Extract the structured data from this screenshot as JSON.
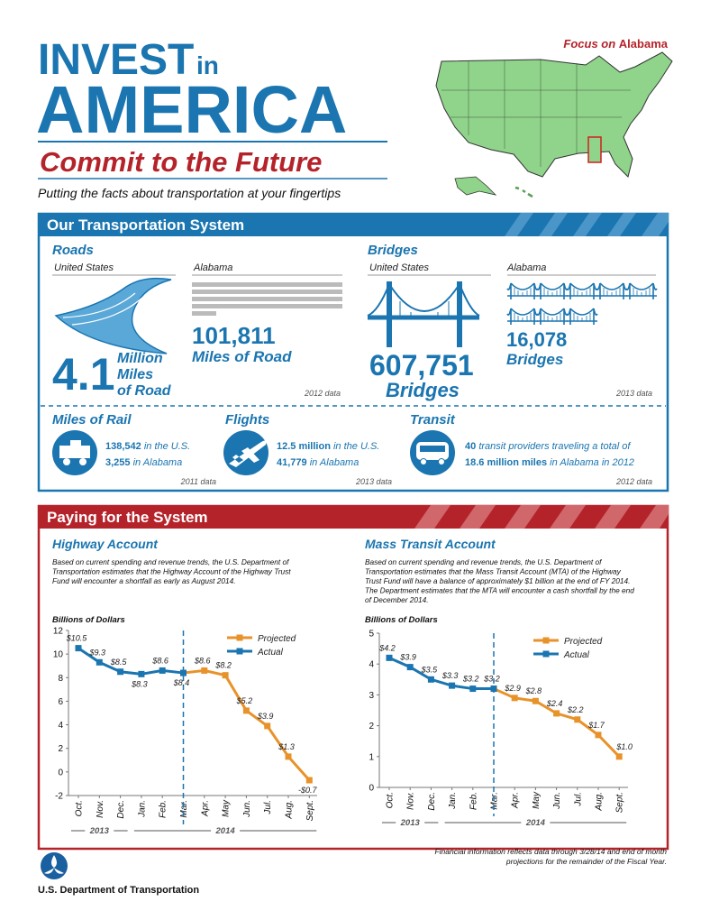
{
  "header": {
    "title_line1": "INVEST",
    "title_in": "in",
    "title_line2": "AMERICA",
    "subtitle": "Commit to the Future",
    "tagline": "Putting the facts about transportation at your fingertips"
  },
  "focus": {
    "prefix": "Focus on",
    "state": "Alabama"
  },
  "transportation_system": {
    "title": "Our Transportation System",
    "roads": {
      "title": "Roads",
      "us_label": "United States",
      "al_label": "Alabama",
      "us_value": "4.1",
      "us_unit": [
        "Million",
        "Miles",
        "of Road"
      ],
      "al_value": "101,811",
      "al_unit": "Miles of Road",
      "source": "2012 data"
    },
    "bridges": {
      "title": "Bridges",
      "us_label": "United States",
      "al_label": "Alabama",
      "us_value": "607,751",
      "us_unit": "Bridges",
      "al_value": "16,078",
      "al_unit": "Bridges",
      "source": "2013 data"
    },
    "rail": {
      "title": "Miles of Rail",
      "lines": [
        {
          "figure": "138,542",
          "text": "in the U.S."
        },
        {
          "figure": "3,255",
          "text": "in Alabama"
        }
      ],
      "source": "2011 data"
    },
    "flights": {
      "title": "Flights",
      "lines": [
        {
          "figure": "12.5 million",
          "text": "in the U.S."
        },
        {
          "figure": "41,779",
          "text": "in Alabama"
        }
      ],
      "source": "2013 data"
    },
    "transit": {
      "title": "Transit",
      "lines": [
        {
          "figure": "40",
          "text": "transit providers traveling a total of"
        },
        {
          "figure": "18.6 million miles",
          "text": "in Alabama in 2012"
        }
      ],
      "source": "2012 data"
    }
  },
  "paying_for_system": {
    "title": "Paying for the System"
  },
  "chart_data": [
    {
      "type": "line",
      "title": "Highway Account",
      "description": [
        "Based on current spending and revenue trends, the U.S. Department of",
        "Transportation estimates that the Highway Account of the Highway Trust",
        "Fund will encounter a shortfall as early as August 2014."
      ],
      "y_label": "Billions of Dollars",
      "categories": [
        "Oct.",
        "Nov.",
        "Dec.",
        "Jan.",
        "Feb.",
        "Mar.",
        "Apr.",
        "May",
        "Jun.",
        "Jul.",
        "Aug.",
        "Sept."
      ],
      "year_labels": [
        "2013",
        "2014"
      ],
      "series": [
        {
          "name": "Projected",
          "color": "#e8922a",
          "values": [
            null,
            null,
            null,
            null,
            null,
            8.4,
            8.6,
            8.2,
            5.2,
            3.9,
            1.3,
            -0.7
          ],
          "value_labels": [
            null,
            null,
            null,
            null,
            null,
            null,
            "$8.6",
            "$8.2",
            "$5.2",
            "$3.9",
            "$1.3",
            "-$0.7"
          ]
        },
        {
          "name": "Actual",
          "color": "#1a75b0",
          "values": [
            10.5,
            9.3,
            8.5,
            8.3,
            8.6,
            8.4,
            null,
            null,
            null,
            null,
            null,
            null
          ],
          "value_labels": [
            "$10.5",
            "$9.3",
            "$8.5",
            "$8.3",
            "$8.6",
            "$8.4",
            null,
            null,
            null,
            null,
            null,
            null
          ]
        }
      ],
      "ylim": [
        -2,
        12
      ],
      "yticks": [
        -2,
        0,
        2,
        4,
        6,
        8,
        10,
        12
      ]
    },
    {
      "type": "line",
      "title": "Mass Transit Account",
      "description": [
        "Based on current spending and revenue trends, the U.S. Department of",
        "Transportation estimates that the Mass Transit Account (MTA) of the Highway",
        "Trust Fund will have a balance of approximately $1 billion at the end of FY 2014.",
        "The Department estimates that the MTA will encounter a cash shortfall by the end",
        "of December 2014."
      ],
      "y_label": "Billions of Dollars",
      "categories": [
        "Oct.",
        "Nov.",
        "Dec.",
        "Jan.",
        "Feb.",
        "Mar.",
        "Apr.",
        "May",
        "Jun.",
        "Jul.",
        "Aug.",
        "Sept."
      ],
      "year_labels": [
        "2013",
        "2014"
      ],
      "series": [
        {
          "name": "Projected",
          "color": "#e8922a",
          "values": [
            null,
            null,
            null,
            null,
            null,
            3.2,
            2.9,
            2.8,
            2.4,
            2.2,
            1.7,
            1.0
          ],
          "value_labels": [
            null,
            null,
            null,
            null,
            null,
            null,
            "$2.9",
            "$2.8",
            "$2.4",
            "$2.2",
            "$1.7",
            "$1.0"
          ]
        },
        {
          "name": "Actual",
          "color": "#1a75b0",
          "values": [
            4.2,
            3.9,
            3.5,
            3.3,
            3.2,
            3.2,
            null,
            null,
            null,
            null,
            null,
            null
          ],
          "value_labels": [
            "$4.2",
            "$3.9",
            "$3.5",
            "$3.3",
            "$3.2",
            "$3.2",
            null,
            null,
            null,
            null,
            null,
            null
          ]
        }
      ],
      "ylim": [
        0,
        5
      ],
      "yticks": [
        0,
        1,
        2,
        3,
        4,
        5
      ]
    }
  ],
  "footer": {
    "note": [
      "Financial information reflects data through 3/28/14 and end of month",
      "projections for the remainder of the Fiscal Year."
    ],
    "agency": "U.S. Department of Transportation"
  }
}
